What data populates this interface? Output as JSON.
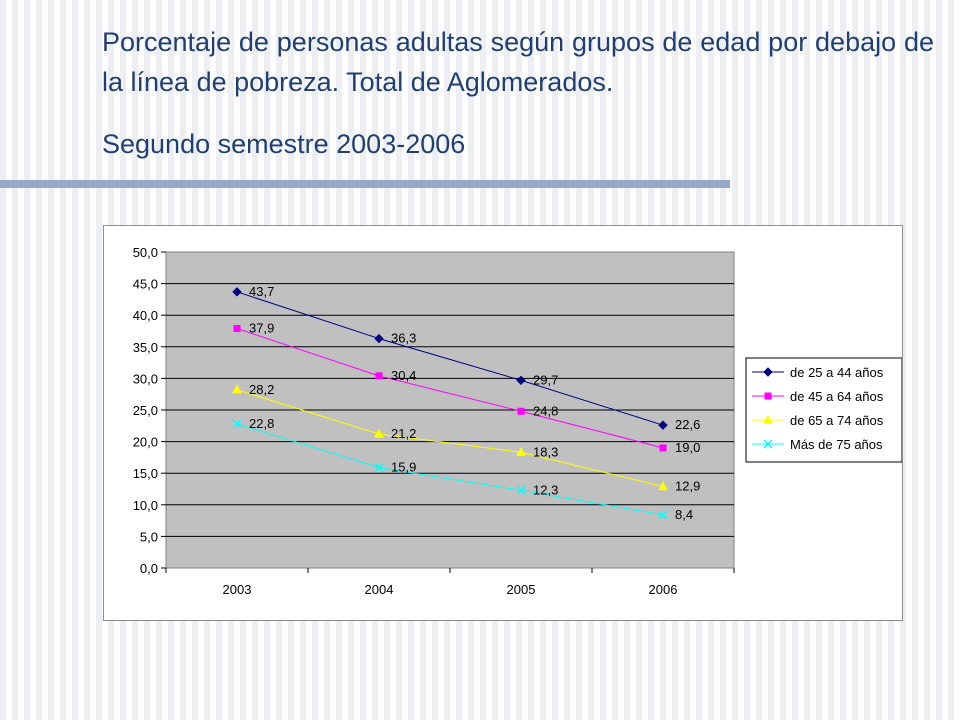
{
  "slide": {
    "title": "Porcentaje de personas adultas según grupos de edad por debajo de la línea de pobreza. Total de Aglomerados.",
    "subtitle": "Segundo semestre 2003-2006"
  },
  "chart_data": {
    "type": "line",
    "title": "",
    "xlabel": "",
    "ylabel": "",
    "categories": [
      "2003",
      "2004",
      "2005",
      "2006"
    ],
    "ylim": [
      0,
      50
    ],
    "yticks": [
      "0,0",
      "5,0",
      "10,0",
      "15,0",
      "20,0",
      "25,0",
      "30,0",
      "35,0",
      "40,0",
      "45,0",
      "50,0"
    ],
    "grid": true,
    "plot_background": "#c0c0c0",
    "legend_position": "right",
    "series": [
      {
        "name": "de 25 a 44 años",
        "values": [
          43.7,
          36.3,
          29.7,
          22.6
        ],
        "labels": [
          "43,7",
          "36,3",
          "29,7",
          "22,6"
        ],
        "color": "#000080",
        "marker": "diamond"
      },
      {
        "name": "de 45 a 64 años",
        "values": [
          37.9,
          30.4,
          24.8,
          19.0
        ],
        "labels": [
          "37,9",
          "30,4",
          "24,8",
          "19,0"
        ],
        "color": "#ff00ff",
        "marker": "square"
      },
      {
        "name": "de 65 a 74 años",
        "values": [
          28.2,
          21.2,
          18.3,
          12.9
        ],
        "labels": [
          "28,2",
          "21,2",
          "18,3",
          "12,9"
        ],
        "color": "#ffff00",
        "marker": "triangle"
      },
      {
        "name": "Más de 75 años",
        "values": [
          22.8,
          15.9,
          12.3,
          8.4
        ],
        "labels": [
          "22,8",
          "15,9",
          "12,3",
          "8,4"
        ],
        "color": "#00ffff",
        "marker": "x"
      }
    ]
  }
}
